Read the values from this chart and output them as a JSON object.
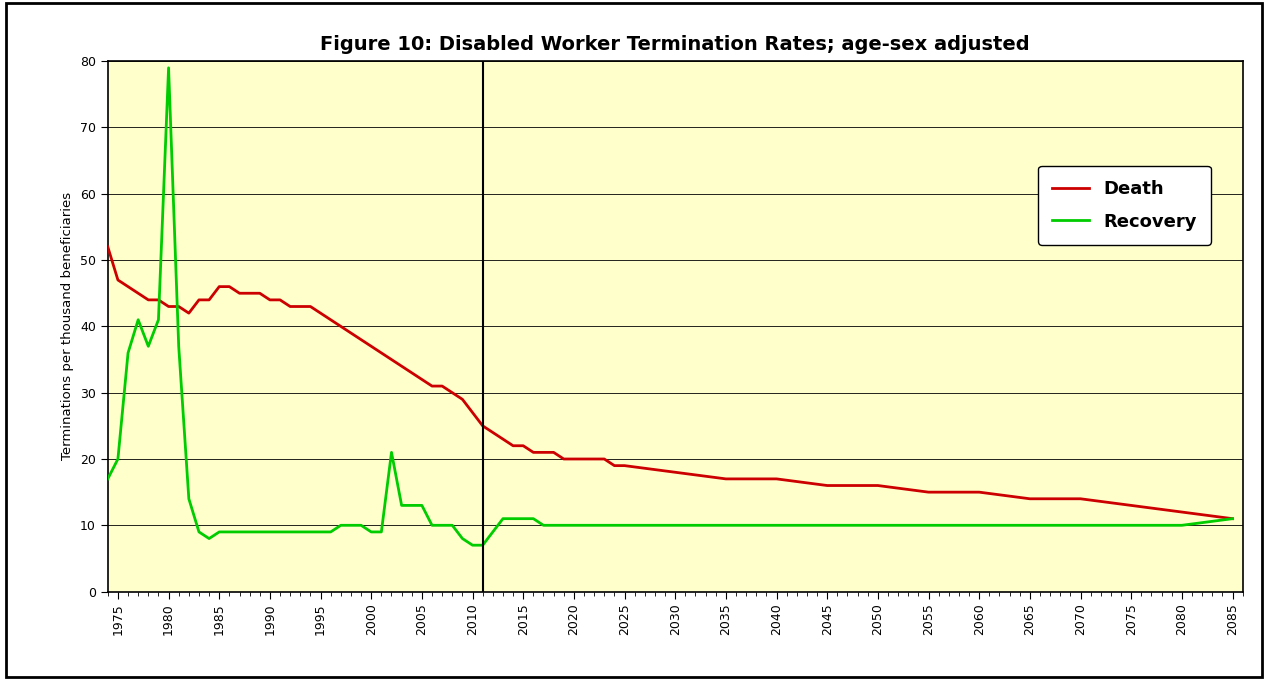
{
  "title": "Figure 10: Disabled Worker Termination Rates; age-sex adjusted",
  "ylabel": "Terminations per thousand beneficiaries",
  "xlim": [
    1974,
    2086
  ],
  "ylim": [
    0,
    80
  ],
  "yticks": [
    0,
    10,
    20,
    30,
    40,
    50,
    60,
    70,
    80
  ],
  "xticks": [
    1975,
    1980,
    1985,
    1990,
    1995,
    2000,
    2005,
    2010,
    2015,
    2020,
    2025,
    2030,
    2035,
    2040,
    2045,
    2050,
    2055,
    2060,
    2065,
    2070,
    2075,
    2080,
    2085
  ],
  "vline_x": 2011,
  "bg_color": "#FFFFCC",
  "fig_bg": "#FFFFFF",
  "death_color": "#CC0000",
  "recovery_color": "#00CC00",
  "death_data": {
    "years": [
      1974,
      1975,
      1976,
      1977,
      1978,
      1979,
      1980,
      1981,
      1982,
      1983,
      1984,
      1985,
      1986,
      1987,
      1988,
      1989,
      1990,
      1991,
      1992,
      1993,
      1994,
      1995,
      1996,
      1997,
      1998,
      1999,
      2000,
      2001,
      2002,
      2003,
      2004,
      2005,
      2006,
      2007,
      2008,
      2009,
      2010,
      2011,
      2012,
      2013,
      2014,
      2015,
      2016,
      2017,
      2018,
      2019,
      2020,
      2021,
      2022,
      2023,
      2024,
      2025,
      2030,
      2035,
      2040,
      2045,
      2050,
      2055,
      2060,
      2065,
      2070,
      2075,
      2080,
      2085
    ],
    "values": [
      52,
      47,
      46,
      45,
      44,
      44,
      43,
      43,
      42,
      44,
      44,
      46,
      46,
      45,
      45,
      45,
      44,
      44,
      43,
      43,
      43,
      42,
      41,
      40,
      39,
      38,
      37,
      36,
      35,
      34,
      33,
      32,
      31,
      31,
      30,
      29,
      27,
      25,
      24,
      23,
      22,
      22,
      21,
      21,
      21,
      20,
      20,
      20,
      20,
      20,
      19,
      19,
      18,
      17,
      17,
      16,
      16,
      15,
      15,
      14,
      14,
      13,
      12,
      11
    ]
  },
  "recovery_data": {
    "years": [
      1974,
      1975,
      1976,
      1977,
      1978,
      1979,
      1980,
      1981,
      1982,
      1983,
      1984,
      1985,
      1986,
      1987,
      1988,
      1989,
      1990,
      1991,
      1992,
      1993,
      1994,
      1995,
      1996,
      1997,
      1998,
      1999,
      2000,
      2001,
      2002,
      2003,
      2004,
      2005,
      2006,
      2007,
      2008,
      2009,
      2010,
      2011,
      2012,
      2013,
      2014,
      2015,
      2016,
      2017,
      2018,
      2019,
      2020,
      2021,
      2022,
      2023,
      2024,
      2025,
      2030,
      2035,
      2040,
      2045,
      2050,
      2055,
      2060,
      2065,
      2070,
      2075,
      2080,
      2085
    ],
    "values": [
      17,
      20,
      36,
      41,
      37,
      41,
      79,
      37,
      14,
      9,
      8,
      9,
      9,
      9,
      9,
      9,
      9,
      9,
      9,
      9,
      9,
      9,
      9,
      10,
      10,
      10,
      9,
      9,
      21,
      13,
      13,
      13,
      10,
      10,
      10,
      8,
      7,
      7,
      9,
      11,
      11,
      11,
      11,
      10,
      10,
      10,
      10,
      10,
      10,
      10,
      10,
      10,
      10,
      10,
      10,
      10,
      10,
      10,
      10,
      10,
      10,
      10,
      10,
      11
    ]
  }
}
